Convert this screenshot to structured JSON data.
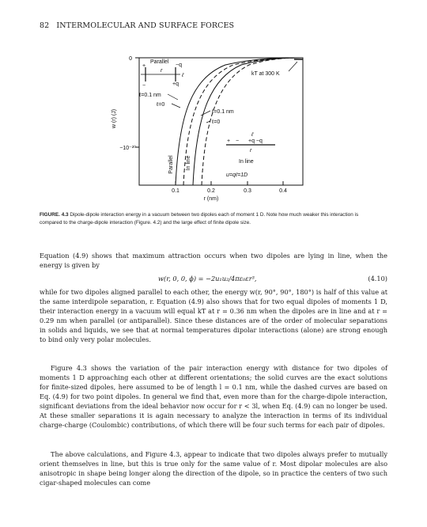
{
  "header": {
    "page_number": "82",
    "running_title": "INTERMOLECULAR AND SURFACE FORCES"
  },
  "figure": {
    "y_axis_label": "w (r) (J)",
    "y_ticks": [
      "0",
      "−10⁻²⁰"
    ],
    "x_axis_label": "r (nm)",
    "x_ticks": [
      "0.1",
      "0.2",
      "0.3",
      "0.4"
    ],
    "kt_label": "kT at 300 K",
    "parallel_label": "Parallel",
    "inline_label": "In line",
    "curve_labels": {
      "left_solid": "ℓ=0.1 nm",
      "left_dashed": "ℓ=0",
      "right_solid": "ℓ=0.1 nm",
      "right_dashed": "ℓ=0",
      "parallel_vertical": "Parallel",
      "inline_vertical": "In line"
    },
    "inset_parallel": {
      "charge_pos": "+",
      "charge_neg": "−",
      "charge_q1": "−q",
      "charge_q2": "+q",
      "r": "r",
      "ell": "ℓ"
    },
    "inset_inline": {
      "ell": "ℓ",
      "plus": "+",
      "minus": "−",
      "q": "+q  −q",
      "r": "r",
      "label": "In line"
    },
    "moment_label": "u=qℓ=1D"
  },
  "caption": {
    "label": "FIGURE. 4.3",
    "text": "Dipole-dipole interaction energy in a vacuum between two dipoles each of moment 1 D. Note how much weaker this interaction is compared to the charge-dipole interaction (Figure. 4.2) and the large effect of finite dipole size."
  },
  "body": {
    "p1": "Equation (4.9) shows that maximum attraction occurs when two dipoles are lying in line, when the energy is given by",
    "eq_expr": "w(r, 0, 0, ϕ)  =  −2u₁u₂/4πε₀εr³,",
    "eq_number": "(4.10)",
    "p2": "while for two dipoles aligned parallel to each other, the energy w(r, 90°, 90°, 180°) is half of this value at the same interdipole separation, r. Equation (4.9) also shows that for two equal dipoles of moments 1 D, their interaction energy in a vacuum will equal kT at r = 0.36 nm when the dipoles are in line and at r = 0.29 nm when parallel (or antiparallel). Since these distances are of the order of molecular separations in solids and liquids, we see that at normal temperatures dipolar interactions (alone) are strong enough to bind only very polar molecules.",
    "p3": "Figure 4.3 shows the variation of the pair interaction energy with distance for two dipoles of moments 1 D approaching each other at different orientations; the solid curves are the exact solutions for finite-sized dipoles, here assumed to be of length l = 0.1 nm, while the dashed curves are based on Eq. (4.9) for two point dipoles. In general we find that, even more than for the charge-dipole interaction, significant deviations from the ideal behavior now occur for r < 3l, when Eq. (4.9) can no longer be used. At these smaller separations it is again necessary to analyze the interaction in terms of its individual charge-charge (Coulombic) contributions, of which there will be four such terms for each pair of dipoles.",
    "p4": "The above calculations, and Figure 4.3, appear to indicate that two dipoles always prefer to mutually orient themselves in line, but this is true only for the same value of r. Most dipolar molecules are also anisotropic in shape being longer along the direction of the dipole, so in practice the centers of two such cigar-shaped molecules can come"
  }
}
